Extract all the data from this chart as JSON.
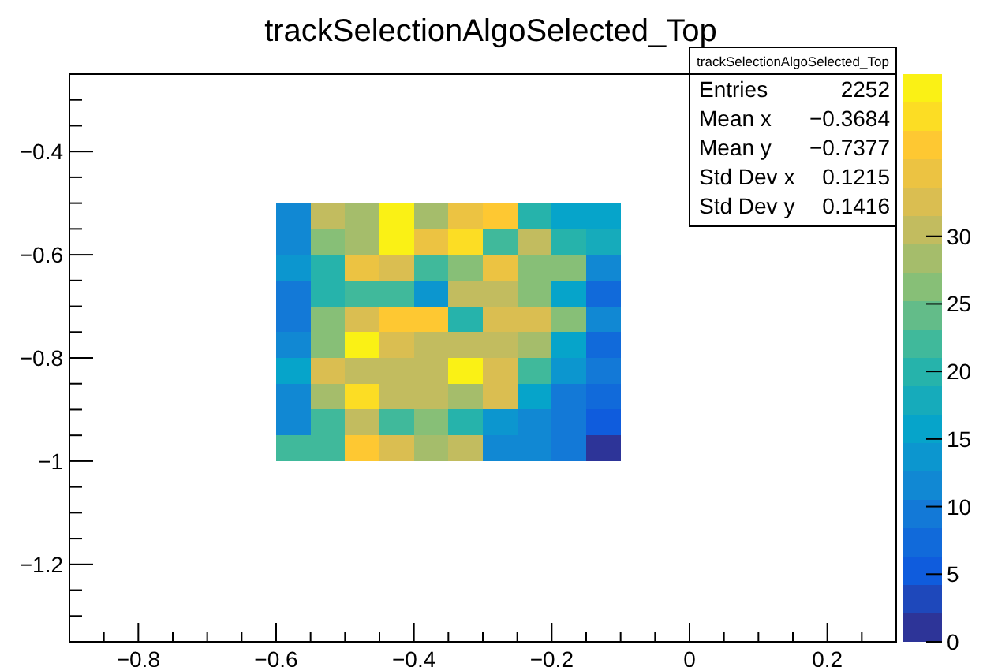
{
  "chart_data": {
    "type": "heatmap",
    "title": "trackSelectionAlgoSelected_Top",
    "x": [
      -0.575,
      -0.525,
      -0.475,
      -0.425,
      -0.375,
      -0.325,
      -0.275,
      -0.225,
      -0.175,
      -0.125
    ],
    "y": [
      -0.525,
      -0.575,
      -0.625,
      -0.675,
      -0.725,
      -0.775,
      -0.825,
      -0.875,
      -0.925,
      -0.975
    ],
    "cells": [
      [
        12,
        30,
        28,
        41,
        28,
        34,
        37,
        19,
        15,
        15
      ],
      [
        12,
        26,
        28,
        41,
        34,
        38,
        21,
        30,
        19,
        17
      ],
      [
        14,
        19,
        34,
        32,
        21,
        26,
        34,
        26,
        26,
        11
      ],
      [
        9,
        19,
        23,
        23,
        14,
        30,
        30,
        26,
        15,
        8
      ],
      [
        10,
        26,
        32,
        37,
        37,
        19,
        32,
        32,
        26,
        11
      ],
      [
        11,
        26,
        41,
        32,
        30,
        30,
        30,
        28,
        15,
        8
      ],
      [
        16,
        32,
        30,
        30,
        30,
        40,
        32,
        23,
        14,
        9
      ],
      [
        11,
        28,
        38,
        30,
        30,
        28,
        32,
        15,
        9,
        8
      ],
      [
        11,
        23,
        30,
        21,
        26,
        19,
        14,
        11,
        9,
        5
      ],
      [
        21,
        23,
        37,
        32,
        28,
        30,
        12,
        12,
        9,
        2
      ]
    ],
    "xlim": [
      -0.9,
      0.3
    ],
    "xticks": [
      {
        "value": -0.85,
        "label": null
      },
      {
        "value": -0.8,
        "label": "−0.8"
      },
      {
        "value": -0.75,
        "label": null
      },
      {
        "value": -0.7,
        "label": null
      },
      {
        "value": -0.65,
        "label": null
      },
      {
        "value": -0.6,
        "label": "−0.6"
      },
      {
        "value": -0.55,
        "label": null
      },
      {
        "value": -0.5,
        "label": null
      },
      {
        "value": -0.45,
        "label": null
      },
      {
        "value": -0.4,
        "label": "−0.4"
      },
      {
        "value": -0.35,
        "label": null
      },
      {
        "value": -0.3,
        "label": null
      },
      {
        "value": -0.25,
        "label": null
      },
      {
        "value": -0.2,
        "label": "−0.2"
      },
      {
        "value": -0.15,
        "label": null
      },
      {
        "value": -0.1,
        "label": null
      },
      {
        "value": -0.05,
        "label": null
      },
      0,
      {
        "value": 0.05,
        "label": null
      },
      {
        "value": 0.1,
        "label": null
      },
      {
        "value": 0.15,
        "label": null
      },
      {
        "value": 0.2,
        "label": "0.2"
      },
      {
        "value": 0.25,
        "label": null
      }
    ],
    "ylim": [
      -1.35,
      -0.25
    ],
    "yticks": [
      {
        "value": -1.3,
        "label": null
      },
      {
        "value": -1.25,
        "label": null
      },
      {
        "value": -1.2,
        "label": "−1.2"
      },
      {
        "value": -1.15,
        "label": null
      },
      {
        "value": -1.1,
        "label": null
      },
      {
        "value": -1.05,
        "label": null
      },
      {
        "value": -1,
        "label": "−1"
      },
      {
        "value": -0.95,
        "label": null
      },
      {
        "value": -0.9,
        "label": null
      },
      {
        "value": -0.85,
        "label": null
      },
      {
        "value": -0.8,
        "label": "−0.8"
      },
      {
        "value": -0.75,
        "label": null
      },
      {
        "value": -0.7,
        "label": null
      },
      {
        "value": -0.65,
        "label": null
      },
      {
        "value": -0.6,
        "label": "−0.6"
      },
      {
        "value": -0.55,
        "label": null
      },
      {
        "value": -0.5,
        "label": null
      },
      {
        "value": -0.45,
        "label": null
      },
      {
        "value": -0.4,
        "label": "−0.4"
      },
      {
        "value": -0.35,
        "label": null
      },
      {
        "value": -0.3,
        "label": null
      }
    ],
    "clim": [
      0,
      42
    ],
    "cticks": [
      0,
      5,
      10,
      15,
      20,
      25,
      30
    ],
    "annotations": [
      "trackSelectionAlgoSelected_Top",
      "Entries",
      "2252",
      "Mean x",
      "−0.3684",
      "Mean y",
      "−0.7377",
      "Std Dev x",
      "0.1215",
      "Std Dev y",
      "0.1416"
    ]
  }
}
